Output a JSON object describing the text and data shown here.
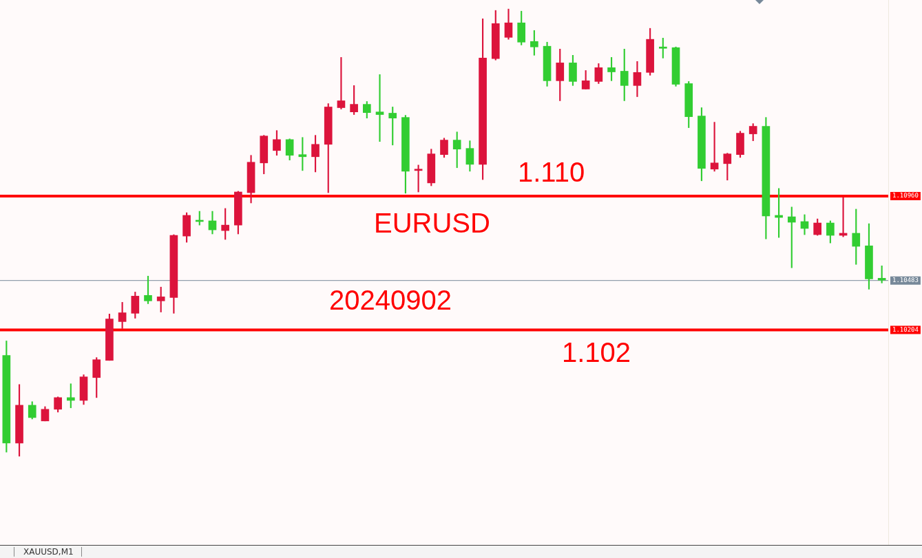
{
  "chart_data": {
    "type": "candlestick",
    "categories": [
      null,
      null,
      null,
      null,
      null,
      null,
      null,
      null,
      null,
      null,
      null,
      null,
      null,
      null,
      null,
      null,
      null,
      null,
      null,
      null,
      null,
      null,
      null,
      null,
      null,
      null,
      null,
      null,
      null,
      null,
      null,
      null,
      null,
      null,
      null,
      null,
      null,
      null,
      null,
      null,
      null,
      null,
      null,
      null,
      null,
      null,
      null,
      null,
      null,
      null,
      null,
      null,
      null,
      null,
      null,
      null,
      null,
      null,
      null,
      null,
      null,
      null,
      null,
      null,
      null,
      null,
      null,
      null,
      null
    ],
    "ohlc": [
      [
        1.1006,
        1.10142,
        1.09514,
        1.09565
      ],
      [
        1.09565,
        1.09896,
        1.09491,
        1.09779
      ],
      [
        1.09779,
        1.09799,
        1.09701,
        1.09709
      ],
      [
        1.0969,
        1.09771,
        1.0969,
        1.09756
      ],
      [
        1.09756,
        1.09826,
        1.0974,
        1.09822
      ],
      [
        1.09822,
        1.099,
        1.09764,
        1.09806
      ],
      [
        1.09806,
        1.09951,
        1.09783,
        1.09939
      ],
      [
        1.09935,
        1.10048,
        1.09822,
        1.10036
      ],
      [
        1.10032,
        1.10294,
        1.10032,
        1.10266
      ],
      [
        1.10251,
        1.1036,
        1.10212,
        1.10301
      ],
      [
        1.10298,
        1.10418,
        1.1027,
        1.10395
      ],
      [
        1.10399,
        1.10508,
        1.10352,
        1.10368
      ],
      [
        1.10368,
        1.10446,
        1.10305,
        1.10391
      ],
      [
        1.10387,
        1.10742,
        1.10298,
        1.10738
      ],
      [
        1.10734,
        1.10866,
        1.10699,
        1.10851
      ],
      [
        1.1082,
        1.10874,
        1.10796,
        1.10816
      ],
      [
        1.1082,
        1.10874,
        1.10746,
        1.10769
      ],
      [
        1.10765,
        1.1089,
        1.10715,
        1.10796
      ],
      [
        1.10796,
        1.10987,
        1.10746,
        1.10983
      ],
      [
        1.10979,
        1.1119,
        1.10921,
        1.11151
      ],
      [
        1.11147,
        1.11303,
        1.11085,
        1.11299
      ],
      [
        1.11217,
        1.1133,
        1.1119,
        1.11279
      ],
      [
        1.11279,
        1.11283,
        1.11163,
        1.1119
      ],
      [
        1.11194,
        1.11291,
        1.11104,
        1.11182
      ],
      [
        1.11182,
        1.11303,
        1.11096,
        1.11252
      ],
      [
        1.11252,
        1.11482,
        1.10979,
        1.11463
      ],
      [
        1.11459,
        1.11743,
        1.11451,
        1.11498
      ],
      [
        1.11435,
        1.11584,
        1.1142,
        1.11478
      ],
      [
        1.11478,
        1.11494,
        1.114,
        1.11431
      ],
      [
        1.11435,
        1.11646,
        1.11268,
        1.1142
      ],
      [
        1.11428,
        1.11463,
        1.11248,
        1.114
      ],
      [
        1.11404,
        1.11416,
        1.10976,
        1.111
      ],
      [
        1.11104,
        1.11135,
        1.10983,
        1.11112
      ],
      [
        1.11034,
        1.11225,
        1.11018,
        1.11198
      ],
      [
        1.11194,
        1.11287,
        1.11178,
        1.11276
      ],
      [
        1.11276,
        1.11322,
        1.1112,
        1.11225
      ],
      [
        1.11229,
        1.11272,
        1.111,
        1.11139
      ],
      [
        1.11139,
        1.11961,
        1.11053,
        1.11739
      ],
      [
        1.11736,
        1.12008,
        1.11728,
        1.11934
      ],
      [
        1.11856,
        1.12016,
        1.11845,
        1.11938
      ],
      [
        1.11938,
        1.12004,
        1.11813,
        1.11829
      ],
      [
        1.11833,
        1.11895,
        1.11755,
        1.11802
      ],
      [
        1.11806,
        1.11829,
        1.1158,
        1.11611
      ],
      [
        1.11611,
        1.1179,
        1.11498,
        1.11712
      ],
      [
        1.11712,
        1.11755,
        1.11584,
        1.11607
      ],
      [
        1.11564,
        1.11669,
        1.11564,
        1.11611
      ],
      [
        1.11607,
        1.11708,
        1.11595,
        1.11685
      ],
      [
        1.11685,
        1.11743,
        1.11611,
        1.11661
      ],
      [
        1.11665,
        1.1179,
        1.11498,
        1.11584
      ],
      [
        1.11584,
        1.1172,
        1.11521,
        1.11658
      ],
      [
        1.11658,
        1.11907,
        1.11642,
        1.11845
      ],
      [
        1.11802,
        1.11852,
        1.11739,
        1.11794
      ],
      [
        1.11798,
        1.11802,
        1.1158,
        1.11591
      ],
      [
        1.11595,
        1.11607,
        1.11346,
        1.11408
      ],
      [
        1.11412,
        1.11459,
        1.11046,
        1.11116
      ],
      [
        1.11112,
        1.11377,
        1.111,
        1.11147
      ],
      [
        1.11143,
        1.11202,
        1.1105,
        1.11198
      ],
      [
        1.11194,
        1.11326,
        1.11178,
        1.11315
      ],
      [
        1.11311,
        1.11369,
        1.11272,
        1.11354
      ],
      [
        1.11354,
        1.11404,
        1.10718,
        1.10847
      ],
      [
        1.10851,
        1.11003,
        1.10726,
        1.10839
      ],
      [
        1.10843,
        1.10898,
        1.10555,
        1.10812
      ],
      [
        1.10816,
        1.10855,
        1.10742,
        1.10777
      ],
      [
        1.10742,
        1.10831,
        1.10738,
        1.10808
      ],
      [
        1.10808,
        1.1082,
        1.10695,
        1.10738
      ],
      [
        1.10738,
        1.10952,
        1.1073,
        1.1075
      ],
      [
        1.1075,
        1.10886,
        1.10574,
        1.10676
      ],
      [
        1.10679,
        1.10804,
        1.10434,
        1.10492
      ],
      [
        1.10496,
        1.10566,
        1.10469,
        1.10485
      ]
    ],
    "colors": [
      "#32cd32",
      "#dc143c",
      "#32cd32",
      "#dc143c",
      "#dc143c",
      "#32cd32",
      "#dc143c",
      "#dc143c",
      "#dc143c",
      "#dc143c",
      "#dc143c",
      "#32cd32",
      "#dc143c",
      "#dc143c",
      "#dc143c",
      "#32cd32",
      "#32cd32",
      "#dc143c",
      "#dc143c",
      "#dc143c",
      "#dc143c",
      "#dc143c",
      "#32cd32",
      "#32cd32",
      "#dc143c",
      "#dc143c",
      "#dc143c",
      "#dc143c",
      "#32cd32",
      "#32cd32",
      "#32cd32",
      "#32cd32",
      "#dc143c",
      "#dc143c",
      "#dc143c",
      "#32cd32",
      "#32cd32",
      "#dc143c",
      "#dc143c",
      "#dc143c",
      "#32cd32",
      "#32cd32",
      "#32cd32",
      "#dc143c",
      "#32cd32",
      "#dc143c",
      "#dc143c",
      "#32cd32",
      "#32cd32",
      "#dc143c",
      "#dc143c",
      "#32cd32",
      "#32cd32",
      "#32cd32",
      "#32cd32",
      "#dc143c",
      "#dc143c",
      "#dc143c",
      "#dc143c",
      "#32cd32",
      "#32cd32",
      "#32cd32",
      "#32cd32",
      "#dc143c",
      "#32cd32",
      "#dc143c",
      "#32cd32",
      "#32cd32",
      "#32cd32"
    ],
    "ylim": [
      1.0899,
      1.12067
    ],
    "yticks": [
      {
        "value": 1.1096,
        "label": "1.10960"
      },
      {
        "value": 1.10483,
        "label": "1.10483"
      },
      {
        "value": 1.10204,
        "label": "1.10204"
      }
    ],
    "ref_lines": [
      {
        "axis": "y",
        "value": 1.1096,
        "color": "#ff0000"
      },
      {
        "axis": "y",
        "value": 1.10483,
        "color": "#778899"
      },
      {
        "axis": "y",
        "value": 1.10204,
        "color": "#ff0000"
      }
    ],
    "annotations": [
      "1.110",
      "EURUSD",
      "20240902",
      "1.102",
      "XAUUSD,M1"
    ],
    "grid": false
  }
}
